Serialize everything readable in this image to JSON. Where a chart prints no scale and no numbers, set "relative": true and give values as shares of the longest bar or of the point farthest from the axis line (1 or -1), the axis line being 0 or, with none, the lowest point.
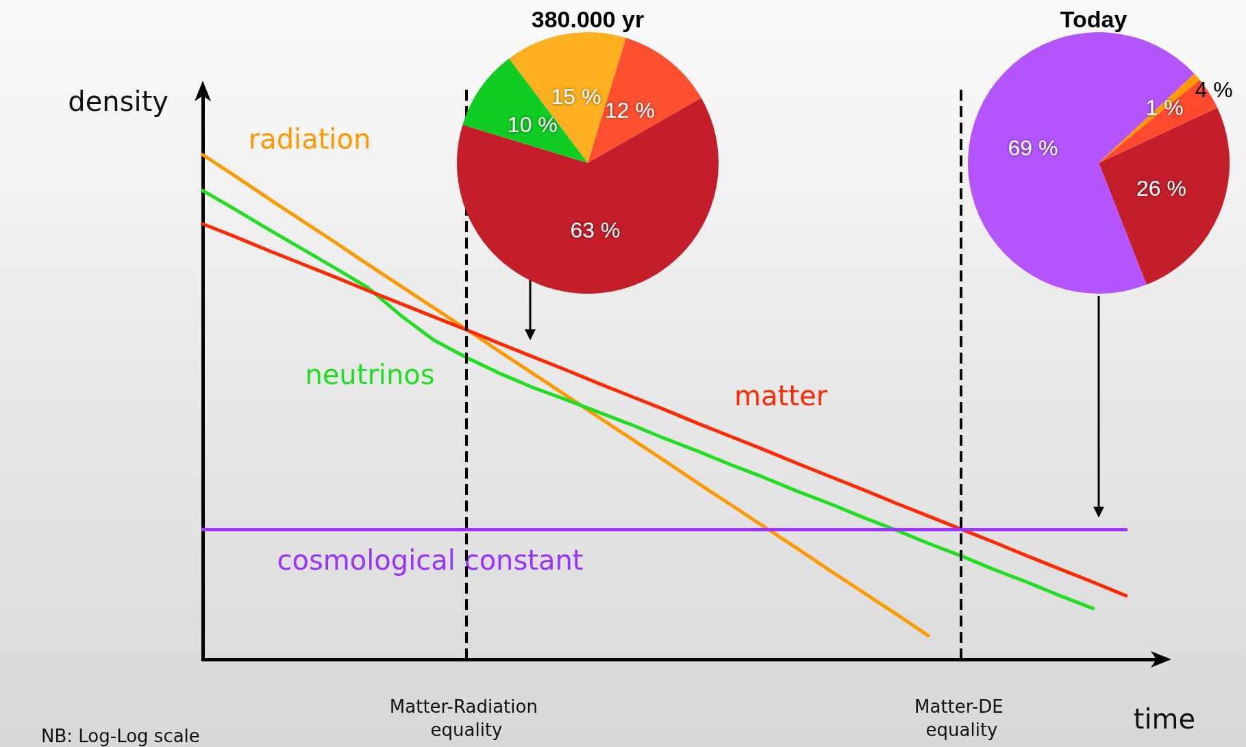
{
  "chart_data": [
    {
      "type": "line",
      "xlabel": "time",
      "ylabel": "density",
      "relative": true,
      "legend": false,
      "grid": false,
      "marker": "none",
      "line_style": "solid",
      "categories": [
        null,
        null,
        null,
        null,
        null,
        null,
        null,
        null,
        null,
        null,
        null,
        null,
        null,
        null,
        null,
        null,
        null,
        null,
        null,
        null,
        null,
        null,
        null,
        null,
        null,
        null,
        null,
        null,
        null,
        null
      ],
      "series": [
        {
          "name": "radiation",
          "color": "#ff9900",
          "values": [
            1.0,
            0.957,
            0.913,
            0.87,
            0.827,
            0.783,
            0.74,
            0.697,
            0.654,
            0.61,
            0.567,
            0.524,
            0.48,
            0.437,
            0.394,
            0.35,
            0.307,
            0.264,
            0.221,
            0.177,
            0.134,
            0.091,
            0.047,
            null,
            null,
            null,
            null,
            null,
            null,
            null
          ]
        },
        {
          "name": "neutrinos",
          "color": "#22dd22",
          "values": [
            0.929,
            0.891,
            0.852,
            0.814,
            0.776,
            0.737,
            0.682,
            0.633,
            0.598,
            0.567,
            0.539,
            0.515,
            0.49,
            0.465,
            0.438,
            0.413,
            0.386,
            0.361,
            0.334,
            0.309,
            0.282,
            0.257,
            0.23,
            0.205,
            0.178,
            0.153,
            0.126,
            0.101,
            null,
            null
          ]
        },
        {
          "name": "matter",
          "color": "#ff2a00",
          "values": [
            0.863,
            0.837,
            0.81,
            0.784,
            0.758,
            0.731,
            0.705,
            0.679,
            0.653,
            0.626,
            0.6,
            0.574,
            0.547,
            0.521,
            0.495,
            0.468,
            0.442,
            0.416,
            0.389,
            0.363,
            0.337,
            0.31,
            0.284,
            0.258,
            0.232,
            0.205,
            0.179,
            0.153,
            0.126,
            null
          ]
        },
        {
          "name": "cosmological constant",
          "color": "#9933ff",
          "values": [
            0.257,
            0.257,
            0.257,
            0.257,
            0.257,
            0.257,
            0.257,
            0.257,
            0.257,
            0.257,
            0.257,
            0.257,
            0.257,
            0.257,
            0.257,
            0.257,
            0.257,
            0.257,
            0.257,
            0.257,
            0.257,
            0.257,
            0.257,
            0.257,
            0.257,
            0.257,
            0.257,
            0.257,
            0.257,
            null
          ]
        }
      ],
      "annotations": [
        "NB: Log-Log scale",
        "Matter-Radiation equality",
        "Matter-DE equality"
      ]
    },
    {
      "type": "pie",
      "title": "380.000 yr",
      "categories": [
        null,
        null,
        null,
        null
      ],
      "values": [
        15,
        12,
        63,
        10
      ],
      "colors": [
        "#ffb020",
        "#ff5030",
        "#c41e2a",
        "#11cc22"
      ],
      "value_labels": [
        "15 %",
        "12 %",
        "63 %",
        "10 %"
      ]
    },
    {
      "type": "pie",
      "title": "Today",
      "categories": [
        null,
        null,
        null,
        null
      ],
      "values": [
        26,
        69,
        1,
        4
      ],
      "colors": [
        "#c41e2a",
        "#b455ff",
        "#ff9900",
        "#ff4a30"
      ],
      "value_labels": [
        "26 %",
        "69 %",
        "1 %",
        "4 %"
      ]
    }
  ]
}
